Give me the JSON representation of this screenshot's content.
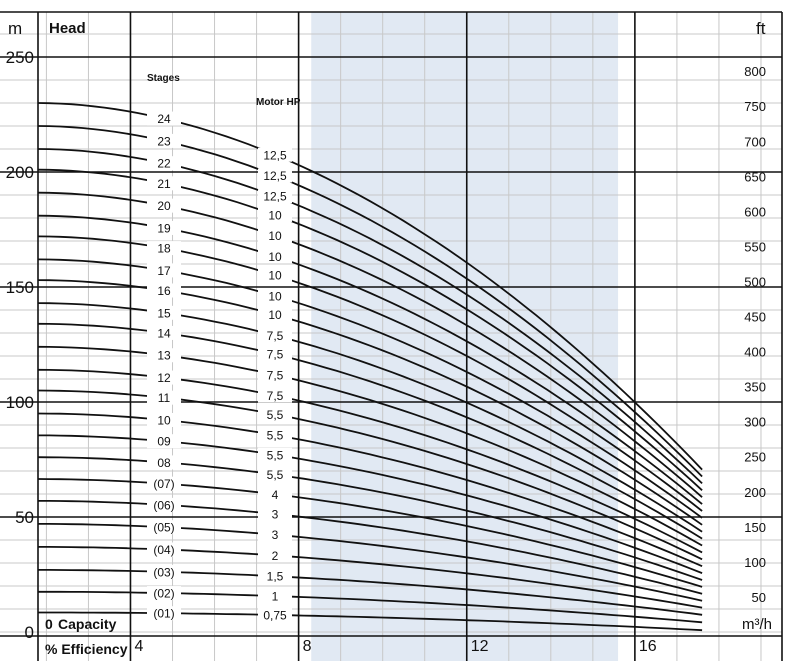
{
  "chart_data": {
    "type": "line",
    "title": "Head",
    "y_unit_left": "m",
    "y_unit_right": "ft",
    "x_unit": "m³/h",
    "xlabel": "Capacity",
    "xlabel_prefix": "0",
    "secondary_xlabel": "% Efficiency",
    "stages_header": "Stages",
    "motor_header": "Motor HP",
    "xlim": [
      1.8,
      19.5
    ],
    "ylim": [
      0,
      250
    ],
    "x_ticks": [
      "4",
      "8",
      "12",
      "16"
    ],
    "y_ticks_left": [
      "0",
      "50",
      "100",
      "150",
      "200",
      "250"
    ],
    "y_ticks_right": [
      "50",
      "100",
      "150",
      "200",
      "250",
      "300",
      "350",
      "400",
      "450",
      "500",
      "550",
      "600",
      "650",
      "700",
      "750",
      "800"
    ],
    "efficiency_band_x": [
      8.3,
      15.6
    ],
    "curve_x_end": 17.6,
    "series": [
      {
        "name": "(01)",
        "motor": "0,75",
        "y0": 8.5,
        "y_end": 0.8
      },
      {
        "name": "(02)",
        "motor": "1",
        "y0": 17.5,
        "y_end": 4.2
      },
      {
        "name": "(03)",
        "motor": "1,5",
        "y0": 27,
        "y_end": 7.5
      },
      {
        "name": "(04)",
        "motor": "2",
        "y0": 37,
        "y_end": 10.6
      },
      {
        "name": "(05)",
        "motor": "3",
        "y0": 47,
        "y_end": 13.6
      },
      {
        "name": "(06)",
        "motor": "3",
        "y0": 57,
        "y_end": 16.6
      },
      {
        "name": "(07)",
        "motor": "4",
        "y0": 66.5,
        "y_end": 19.6
      },
      {
        "name": "08",
        "motor": "5,5",
        "y0": 76,
        "y_end": 22.6
      },
      {
        "name": "09",
        "motor": "5,5",
        "y0": 85.5,
        "y_end": 25.6
      },
      {
        "name": "10",
        "motor": "5,5",
        "y0": 95,
        "y_end": 28.6
      },
      {
        "name": "11",
        "motor": "5,5",
        "y0": 105,
        "y_end": 31.6
      },
      {
        "name": "12",
        "motor": "7,5",
        "y0": 114,
        "y_end": 34.6
      },
      {
        "name": "13",
        "motor": "7,5",
        "y0": 124,
        "y_end": 37.6
      },
      {
        "name": "14",
        "motor": "7,5",
        "y0": 134,
        "y_end": 40.6
      },
      {
        "name": "15",
        "motor": "7,5",
        "y0": 143,
        "y_end": 43.6
      },
      {
        "name": "16",
        "motor": "10",
        "y0": 153,
        "y_end": 46.6
      },
      {
        "name": "17",
        "motor": "10",
        "y0": 162,
        "y_end": 49.6
      },
      {
        "name": "18",
        "motor": "10",
        "y0": 172,
        "y_end": 52.6
      },
      {
        "name": "19",
        "motor": "10",
        "y0": 181,
        "y_end": 55.6
      },
      {
        "name": "20",
        "motor": "10",
        "y0": 191,
        "y_end": 58.6
      },
      {
        "name": "21",
        "motor": "10",
        "y0": 201,
        "y_end": 61.6
      },
      {
        "name": "22",
        "motor": "12,5",
        "y0": 210,
        "y_end": 64.6
      },
      {
        "name": "23",
        "motor": "12,5",
        "y0": 220,
        "y_end": 67.6
      },
      {
        "name": "24",
        "motor": "12,5",
        "y0": 230,
        "y_end": 70.6
      }
    ],
    "grid": true,
    "colors": {
      "band": "#e1e9f3",
      "line": "#111111",
      "grid": "#c8c8c8"
    }
  }
}
